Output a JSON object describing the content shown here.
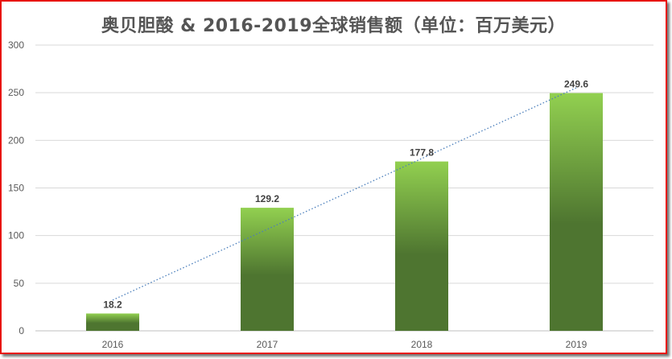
{
  "chart_data": {
    "type": "bar",
    "title": "奥贝胆酸 & 2016-2019全球销售额（单位：百万美元）",
    "categories": [
      "2016",
      "2017",
      "2018",
      "2019"
    ],
    "values": [
      18.2,
      129.2,
      177.8,
      249.6
    ],
    "data_labels": [
      "18.2",
      "129.2",
      "177.8",
      "249.6"
    ],
    "ylim": [
      0,
      300
    ],
    "yticks": [
      "0",
      "50",
      "100",
      "150",
      "200",
      "250",
      "300"
    ],
    "xlabel": "",
    "ylabel": "",
    "grid": true,
    "trendline": "linear",
    "colors": {
      "bar_top": "#92d050",
      "bar_bottom": "#4e7530",
      "trendline": "#4a7ebb",
      "grid": "#d9d9d9",
      "frame": "#e8150f"
    }
  }
}
